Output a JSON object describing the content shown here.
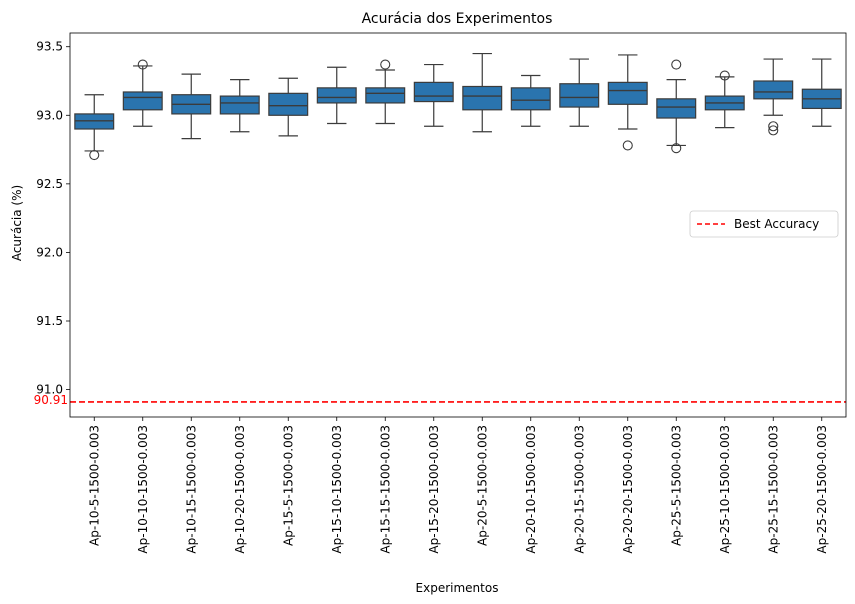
{
  "chart_data": {
    "type": "boxplot",
    "title": "Acurácia dos Experimentos",
    "xlabel": "Experimentos",
    "ylabel": "Acurácia (%)",
    "ylim": [
      90.8,
      93.6
    ],
    "yticks": [
      "91.0",
      "91.5",
      "92.0",
      "92.5",
      "93.0",
      "93.5"
    ],
    "box_color": "#2a74ae",
    "line_color": "#3b3b3b",
    "grid": false,
    "legend": {
      "placement": "right",
      "entries": [
        {
          "label": "Best Accuracy",
          "color": "#ff0000",
          "style": "dashed"
        }
      ]
    },
    "reference_line": {
      "value": 90.91,
      "label": "90.91",
      "color": "#ff0000"
    },
    "categories": [
      "Ap-10-5-1500-0.003",
      "Ap-10-10-1500-0.003",
      "Ap-10-15-1500-0.003",
      "Ap-10-20-1500-0.003",
      "Ap-15-5-1500-0.003",
      "Ap-15-10-1500-0.003",
      "Ap-15-15-1500-0.003",
      "Ap-15-20-1500-0.003",
      "Ap-20-5-1500-0.003",
      "Ap-20-10-1500-0.003",
      "Ap-20-15-1500-0.003",
      "Ap-20-20-1500-0.003",
      "Ap-25-5-1500-0.003",
      "Ap-25-10-1500-0.003",
      "Ap-25-15-1500-0.003",
      "Ap-25-20-1500-0.003"
    ],
    "boxes": [
      {
        "whislo": 92.74,
        "q1": 92.9,
        "med": 92.96,
        "q3": 93.01,
        "whishi": 93.15,
        "fliers": [
          92.71
        ]
      },
      {
        "whislo": 92.92,
        "q1": 93.04,
        "med": 93.13,
        "q3": 93.17,
        "whishi": 93.36,
        "fliers": [
          93.37
        ]
      },
      {
        "whislo": 92.83,
        "q1": 93.01,
        "med": 93.08,
        "q3": 93.15,
        "whishi": 93.3,
        "fliers": []
      },
      {
        "whislo": 92.88,
        "q1": 93.01,
        "med": 93.09,
        "q3": 93.14,
        "whishi": 93.26,
        "fliers": []
      },
      {
        "whislo": 92.85,
        "q1": 93.0,
        "med": 93.07,
        "q3": 93.16,
        "whishi": 93.27,
        "fliers": []
      },
      {
        "whislo": 92.94,
        "q1": 93.09,
        "med": 93.13,
        "q3": 93.2,
        "whishi": 93.35,
        "fliers": []
      },
      {
        "whislo": 92.94,
        "q1": 93.09,
        "med": 93.16,
        "q3": 93.2,
        "whishi": 93.33,
        "fliers": [
          93.37
        ]
      },
      {
        "whislo": 92.92,
        "q1": 93.1,
        "med": 93.14,
        "q3": 93.24,
        "whishi": 93.37,
        "fliers": []
      },
      {
        "whislo": 92.88,
        "q1": 93.04,
        "med": 93.14,
        "q3": 93.21,
        "whishi": 93.45,
        "fliers": []
      },
      {
        "whislo": 92.92,
        "q1": 93.04,
        "med": 93.11,
        "q3": 93.2,
        "whishi": 93.29,
        "fliers": []
      },
      {
        "whislo": 92.92,
        "q1": 93.06,
        "med": 93.13,
        "q3": 93.23,
        "whishi": 93.41,
        "fliers": []
      },
      {
        "whislo": 92.9,
        "q1": 93.08,
        "med": 93.18,
        "q3": 93.24,
        "whishi": 93.44,
        "fliers": [
          92.78
        ]
      },
      {
        "whislo": 92.78,
        "q1": 92.98,
        "med": 93.06,
        "q3": 93.12,
        "whishi": 93.26,
        "fliers": [
          92.76,
          93.37
        ]
      },
      {
        "whislo": 92.91,
        "q1": 93.04,
        "med": 93.09,
        "q3": 93.14,
        "whishi": 93.28,
        "fliers": [
          93.29
        ]
      },
      {
        "whislo": 93.0,
        "q1": 93.12,
        "med": 93.17,
        "q3": 93.25,
        "whishi": 93.41,
        "fliers": [
          92.89,
          92.92
        ]
      },
      {
        "whislo": 92.92,
        "q1": 93.05,
        "med": 93.12,
        "q3": 93.19,
        "whishi": 93.41,
        "fliers": []
      }
    ]
  }
}
